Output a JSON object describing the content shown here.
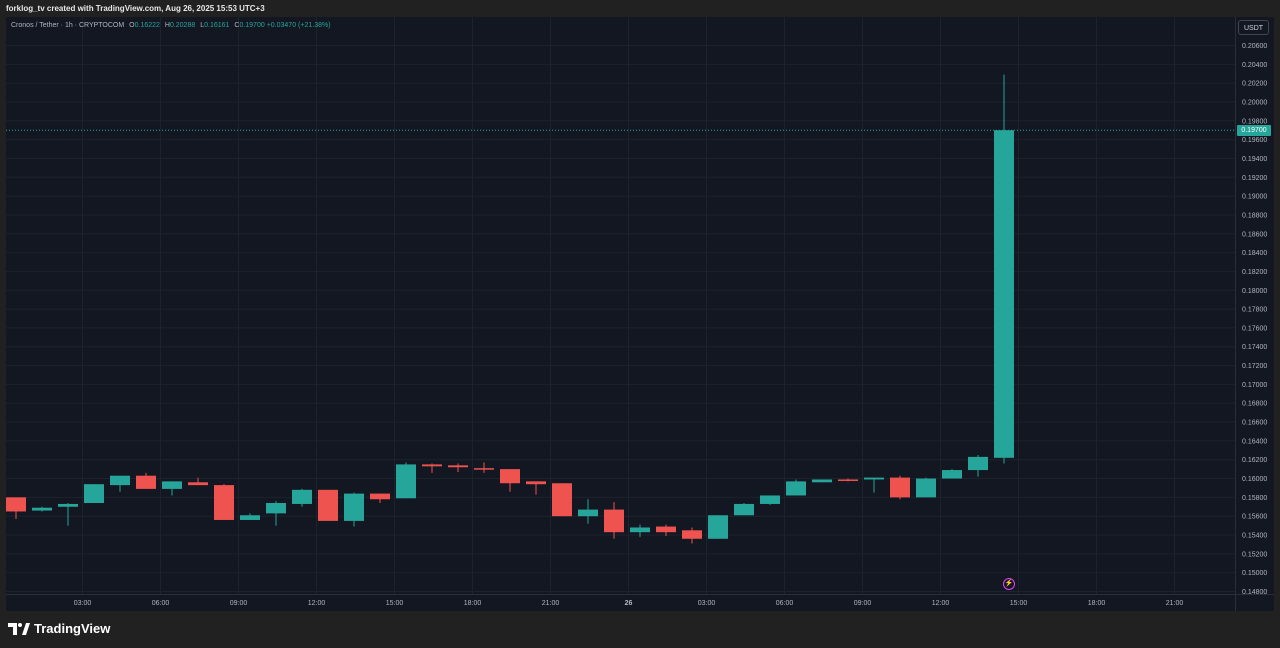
{
  "header": {
    "attribution": "forklog_tv created with TradingView.com, Aug 26, 2025 15:53 UTC+3"
  },
  "legend": {
    "symbol": "Cronos / Tether · 1h · CRYPTOCOM",
    "o_label": "O",
    "o": "0.16222",
    "h_label": "H",
    "h": "0.20288",
    "l_label": "L",
    "l": "0.16161",
    "c_label": "C",
    "c": "0.19700",
    "change": "+0.03470 (+21.38%)"
  },
  "currency_button": "USDT",
  "last_price_label": "0.19700",
  "brand": "TradingView",
  "colors": {
    "background": "#131722",
    "outer": "#212121",
    "up": "#26a69a",
    "down": "#ef5350",
    "grid": "#1e222d",
    "axis_text": "#b2b5be"
  },
  "chart_data": {
    "type": "candlestick",
    "title": "Cronos / Tether · 1h · CRYPTOCOM",
    "ylim": [
      0.148,
      0.207
    ],
    "y_ticks": [
      "0.14800",
      "0.15000",
      "0.15200",
      "0.15400",
      "0.15600",
      "0.15800",
      "0.16000",
      "0.16200",
      "0.16400",
      "0.16600",
      "0.16800",
      "0.17000",
      "0.17200",
      "0.17400",
      "0.17600",
      "0.17800",
      "0.18000",
      "0.18200",
      "0.18400",
      "0.18600",
      "0.18800",
      "0.19000",
      "0.19200",
      "0.19400",
      "0.19600",
      "0.19800",
      "0.20000",
      "0.20200",
      "0.20400",
      "0.20600"
    ],
    "x_ticks": [
      {
        "label": "03:00",
        "index": 2.5
      },
      {
        "label": "06:00",
        "index": 5.5
      },
      {
        "label": "09:00",
        "index": 8.5
      },
      {
        "label": "12:00",
        "index": 11.5
      },
      {
        "label": "15:00",
        "index": 14.5
      },
      {
        "label": "18:00",
        "index": 17.5
      },
      {
        "label": "21:00",
        "index": 20.5
      },
      {
        "label": "26",
        "index": 23.5,
        "bold": true
      },
      {
        "label": "03:00",
        "index": 26.5
      },
      {
        "label": "06:00",
        "index": 29.5
      },
      {
        "label": "09:00",
        "index": 32.5
      },
      {
        "label": "12:00",
        "index": 35.5
      },
      {
        "label": "15:00",
        "index": 38.5
      },
      {
        "label": "18:00",
        "index": 41.5
      },
      {
        "label": "21:00",
        "index": 44.5
      }
    ],
    "last_price": 0.197,
    "candles": [
      {
        "o": 0.158,
        "h": 0.158,
        "l": 0.1557,
        "c": 0.1565
      },
      {
        "o": 0.1566,
        "h": 0.157,
        "l": 0.1565,
        "c": 0.1569
      },
      {
        "o": 0.157,
        "h": 0.1574,
        "l": 0.155,
        "c": 0.1573
      },
      {
        "o": 0.1574,
        "h": 0.1594,
        "l": 0.1574,
        "c": 0.1594
      },
      {
        "o": 0.1593,
        "h": 0.1603,
        "l": 0.1586,
        "c": 0.1603
      },
      {
        "o": 0.1603,
        "h": 0.1606,
        "l": 0.1589,
        "c": 0.1589
      },
      {
        "o": 0.1589,
        "h": 0.1597,
        "l": 0.1582,
        "c": 0.1597
      },
      {
        "o": 0.1596,
        "h": 0.1601,
        "l": 0.1593,
        "c": 0.1593
      },
      {
        "o": 0.1593,
        "h": 0.1594,
        "l": 0.1556,
        "c": 0.1556
      },
      {
        "o": 0.1556,
        "h": 0.1563,
        "l": 0.1556,
        "c": 0.1561
      },
      {
        "o": 0.1563,
        "h": 0.1576,
        "l": 0.155,
        "c": 0.1574
      },
      {
        "o": 0.1573,
        "h": 0.1589,
        "l": 0.157,
        "c": 0.1588
      },
      {
        "o": 0.1588,
        "h": 0.1588,
        "l": 0.1555,
        "c": 0.1555
      },
      {
        "o": 0.1555,
        "h": 0.1585,
        "l": 0.1549,
        "c": 0.1584
      },
      {
        "o": 0.1584,
        "h": 0.1584,
        "l": 0.1574,
        "c": 0.1578
      },
      {
        "o": 0.1579,
        "h": 0.1617,
        "l": 0.1579,
        "c": 0.1615
      },
      {
        "o": 0.1615,
        "h": 0.1616,
        "l": 0.1606,
        "c": 0.1613
      },
      {
        "o": 0.1614,
        "h": 0.1616,
        "l": 0.1607,
        "c": 0.1612
      },
      {
        "o": 0.1611,
        "h": 0.1617,
        "l": 0.1606,
        "c": 0.161
      },
      {
        "o": 0.161,
        "h": 0.161,
        "l": 0.1586,
        "c": 0.1595
      },
      {
        "o": 0.1597,
        "h": 0.1597,
        "l": 0.1583,
        "c": 0.1594
      },
      {
        "o": 0.1595,
        "h": 0.1595,
        "l": 0.156,
        "c": 0.156
      },
      {
        "o": 0.156,
        "h": 0.1578,
        "l": 0.1552,
        "c": 0.1567
      },
      {
        "o": 0.1567,
        "h": 0.1575,
        "l": 0.1536,
        "c": 0.1543
      },
      {
        "o": 0.1543,
        "h": 0.1551,
        "l": 0.1538,
        "c": 0.1548
      },
      {
        "o": 0.1549,
        "h": 0.1551,
        "l": 0.1539,
        "c": 0.1543
      },
      {
        "o": 0.1545,
        "h": 0.1548,
        "l": 0.1531,
        "c": 0.1536
      },
      {
        "o": 0.1536,
        "h": 0.1561,
        "l": 0.1536,
        "c": 0.1561
      },
      {
        "o": 0.1561,
        "h": 0.1574,
        "l": 0.1561,
        "c": 0.1573
      },
      {
        "o": 0.1573,
        "h": 0.1582,
        "l": 0.1572,
        "c": 0.1582
      },
      {
        "o": 0.1582,
        "h": 0.1599,
        "l": 0.1582,
        "c": 0.1597
      },
      {
        "o": 0.1596,
        "h": 0.1599,
        "l": 0.1596,
        "c": 0.1599
      },
      {
        "o": 0.1599,
        "h": 0.16,
        "l": 0.1597,
        "c": 0.1598
      },
      {
        "o": 0.1599,
        "h": 0.1601,
        "l": 0.1585,
        "c": 0.1601
      },
      {
        "o": 0.1601,
        "h": 0.1603,
        "l": 0.1578,
        "c": 0.158
      },
      {
        "o": 0.158,
        "h": 0.1601,
        "l": 0.158,
        "c": 0.16
      },
      {
        "o": 0.16,
        "h": 0.161,
        "l": 0.16,
        "c": 0.1609
      },
      {
        "o": 0.1609,
        "h": 0.1625,
        "l": 0.1602,
        "c": 0.1623
      },
      {
        "o": 0.1622,
        "h": 0.2029,
        "l": 0.1616,
        "c": 0.197
      }
    ]
  }
}
